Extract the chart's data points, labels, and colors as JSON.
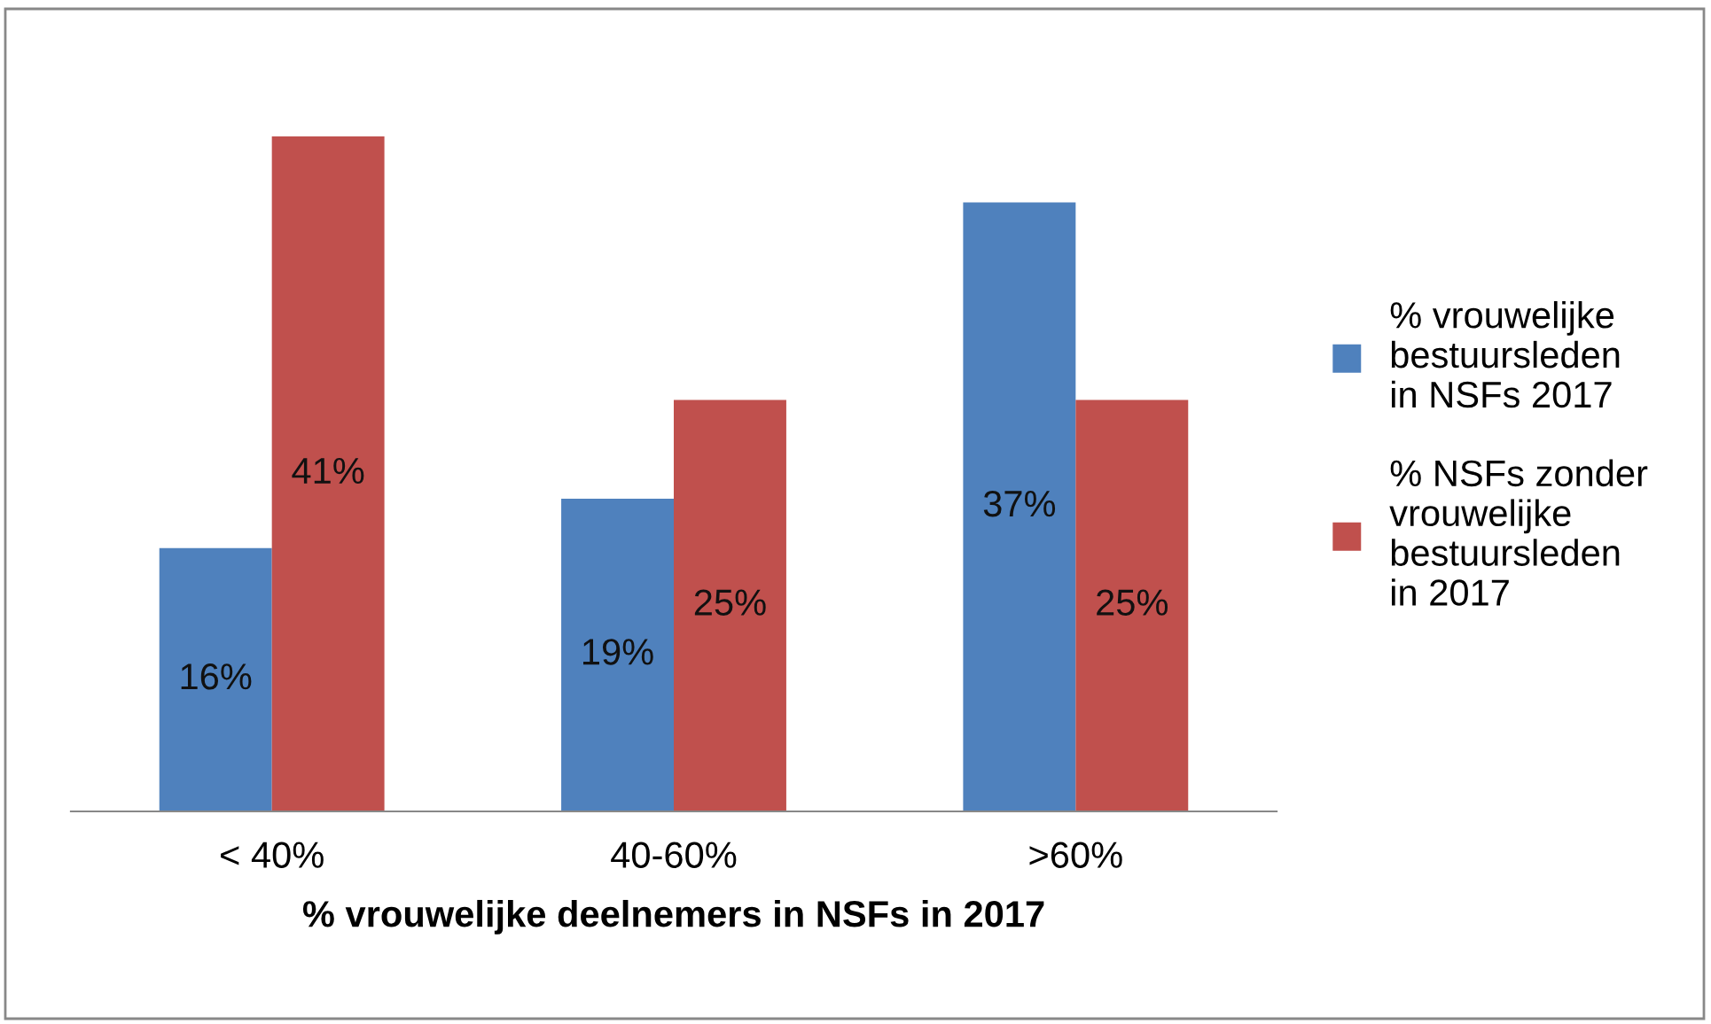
{
  "chart_data": {
    "type": "bar",
    "categories": [
      "< 40%",
      "40-60%",
      ">60%"
    ],
    "xlabel": "% vrouwelijke deelnemers in NSFs in 2017",
    "series": [
      {
        "name": "% vrouwelijke\nbestuursleden\nin NSFs 2017",
        "color": "#4f81bd",
        "values": [
          16,
          19,
          37
        ],
        "value_labels": [
          "16%",
          "19%",
          "37%"
        ]
      },
      {
        "name": "% NSFs zonder\nvrouwelijke\nbestuursleden\nin 2017",
        "color": "#c0504d",
        "values": [
          41,
          25,
          25
        ],
        "value_labels": [
          "41%",
          "25%",
          "25%"
        ]
      }
    ],
    "legend": "right",
    "grid": false
  }
}
